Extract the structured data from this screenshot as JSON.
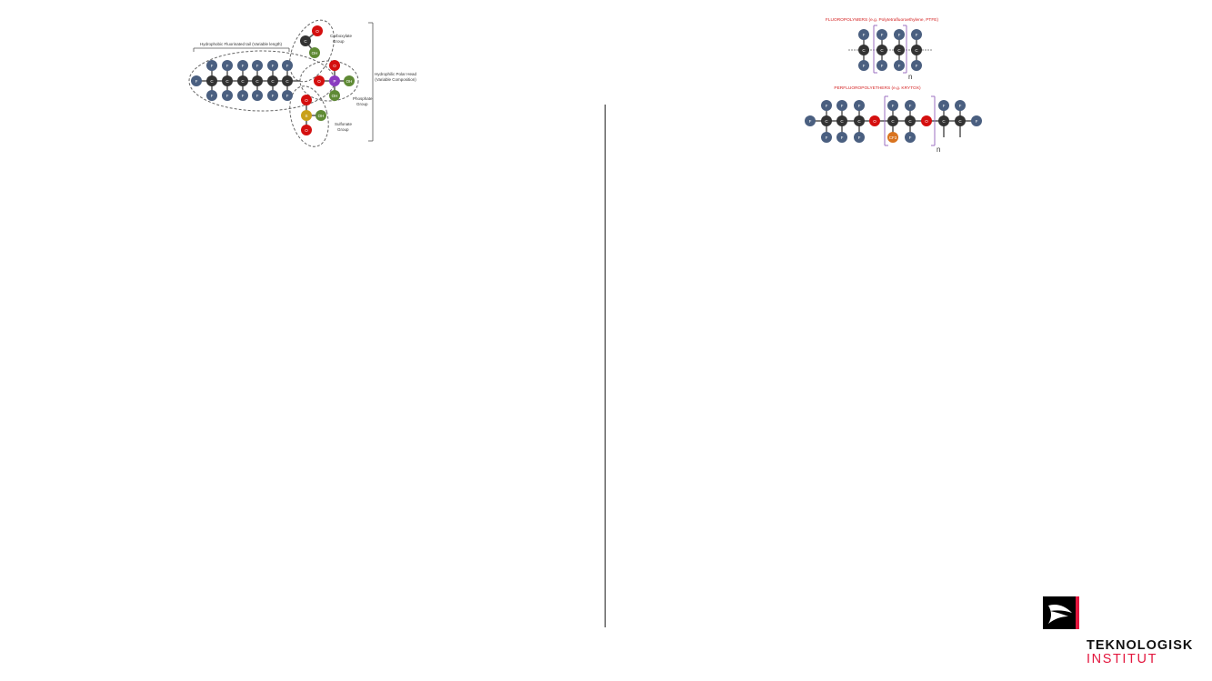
{
  "surfactant": {
    "tail_label": "Hydrophobic Fluorinated tail (Variable length)",
    "head_label_1": "Hydrophilic Polar Head",
    "head_label_2": "(Variable Composition)",
    "carboxylate_label": [
      "Carboxylate",
      "Group"
    ],
    "phosphate_label": [
      "Phosphate",
      "Group"
    ],
    "sulfonate_label": [
      "Sulfonate",
      "Group"
    ],
    "tail_atoms": [
      "F",
      "C",
      "C",
      "C",
      "C",
      "C",
      "C",
      "F",
      "F",
      "F",
      "F",
      "F",
      "F",
      "F",
      "F",
      "F",
      "F",
      "F",
      "F"
    ],
    "carboxylate_atoms": [
      "C",
      "O",
      "OH"
    ],
    "phosphate_atoms": [
      "P",
      "O",
      "O",
      "OH",
      "OH"
    ],
    "sulfonate_atoms": [
      "S",
      "O",
      "O",
      "OH"
    ]
  },
  "fluoropolymer": {
    "title": "FLUOROPOLYMERS (e.g. Polytetrafluoroethylene, PTFE)",
    "repeat": "n",
    "atoms": [
      "C",
      "C",
      "C",
      "C",
      "F",
      "F",
      "F",
      "F",
      "F",
      "F",
      "F",
      "F"
    ]
  },
  "perfluoropolyether": {
    "title": "PERFLUOROPOLYETHERS (e.g. KRYTOX)",
    "repeat": "n",
    "atoms": [
      "F",
      "C",
      "C",
      "C",
      "O",
      "C",
      "C",
      "O",
      "C",
      "C",
      "F",
      "F",
      "F",
      "F",
      "F",
      "F",
      "F",
      "F",
      "F",
      "F",
      "F",
      "CF3",
      "F"
    ]
  },
  "colors": {
    "fluorine": "#4a5f80",
    "carbon": "#333333",
    "oxygen": "#d40f0f",
    "hydroxyl": "#5f8a35",
    "phosphorus": "#8a3bc0",
    "sulfur": "#c9a11a",
    "cf3": "#d9731f",
    "title_red": "#d42020",
    "bracket": "#9b6fc0",
    "brand_red": "#e3173e"
  },
  "logo": {
    "line1": "TEKNOLOGISK",
    "line2": "INSTITUT"
  }
}
